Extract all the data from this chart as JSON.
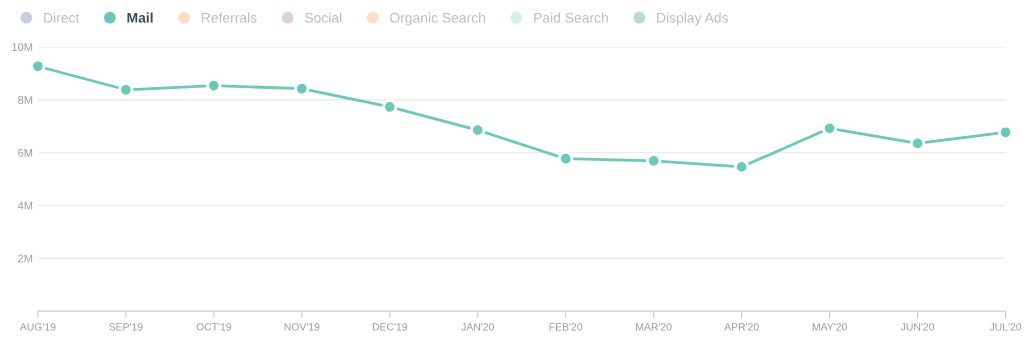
{
  "chart_data": {
    "type": "line",
    "categories": [
      "AUG'19",
      "SEP'19",
      "OCT'19",
      "NOV'19",
      "DEC'19",
      "JAN'20",
      "FEB'20",
      "MAR'20",
      "APR'20",
      "MAY'20",
      "JUN'20",
      "JUL'20"
    ],
    "series": [
      {
        "name": "Direct",
        "color": "#c5d0dc",
        "values": [
          null,
          null,
          null,
          null,
          null,
          null,
          null,
          null,
          null,
          null,
          null,
          null
        ]
      },
      {
        "name": "Mail",
        "color": "#6cc8ba",
        "values": [
          9.27,
          8.38,
          8.54,
          8.42,
          7.73,
          6.85,
          5.77,
          5.69,
          5.46,
          6.92,
          6.35,
          6.77
        ]
      },
      {
        "name": "Referrals",
        "color": "#fddfc0",
        "values": [
          null,
          null,
          null,
          null,
          null,
          null,
          null,
          null,
          null,
          null,
          null,
          null
        ]
      },
      {
        "name": "Social",
        "color": "#e0d2d0",
        "values": [
          null,
          null,
          null,
          null,
          null,
          null,
          null,
          null,
          null,
          null,
          null,
          null
        ]
      },
      {
        "name": "Organic Search",
        "color": "#fcdfc2",
        "values": [
          null,
          null,
          null,
          null,
          null,
          null,
          null,
          null,
          null,
          null,
          null,
          null
        ]
      },
      {
        "name": "Paid Search",
        "color": "#d5f0ee",
        "values": [
          null,
          null,
          null,
          null,
          null,
          null,
          null,
          null,
          null,
          null,
          null,
          null
        ]
      },
      {
        "name": "Display Ads",
        "color": "#b7dbd6",
        "values": [
          null,
          null,
          null,
          null,
          null,
          null,
          null,
          null,
          null,
          null,
          null,
          null
        ]
      }
    ],
    "ylim": [
      0,
      10
    ],
    "yticks": [
      {
        "value": 2,
        "label": "2M"
      },
      {
        "value": 4,
        "label": "4M"
      },
      {
        "value": 6,
        "label": "6M"
      },
      {
        "value": 8,
        "label": "8M"
      },
      {
        "value": 10,
        "label": "10M"
      }
    ],
    "grid": "y",
    "legend": "top left",
    "marker": "circle",
    "line_style": "solid"
  }
}
